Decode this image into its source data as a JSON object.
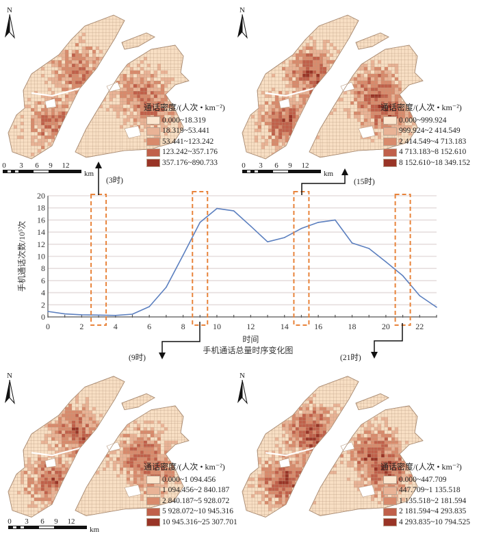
{
  "chart_data": {
    "type": "line",
    "title": "手机通话总量时序变化图",
    "xlabel": "时间",
    "ylabel": "手机通话次数/10⁵次",
    "xlim": [
      0,
      23
    ],
    "ylim": [
      0,
      20
    ],
    "grid": true,
    "x_ticks": [
      "0",
      "2",
      "4",
      "6",
      "8",
      "10",
      "12",
      "14",
      "16",
      "18",
      "20",
      "22"
    ],
    "y_ticks": [
      "0",
      "2",
      "4",
      "6",
      "8",
      "10",
      "12",
      "14",
      "16",
      "18",
      "20"
    ],
    "x": [
      0,
      1,
      2,
      3,
      4,
      5,
      6,
      7,
      8,
      9,
      10,
      11,
      12,
      13,
      14,
      15,
      16,
      17,
      18,
      19,
      20,
      21,
      22,
      23
    ],
    "series": [
      {
        "name": "手机通话次数",
        "color": "#5b7fbf",
        "values": [
          0.9,
          0.5,
          0.35,
          0.3,
          0.25,
          0.45,
          1.7,
          4.9,
          10.2,
          15.6,
          17.9,
          17.5,
          15.0,
          12.4,
          13.1,
          14.6,
          15.6,
          16.0,
          12.2,
          11.3,
          9.1,
          6.8,
          3.5,
          1.6
        ]
      }
    ],
    "highlight_hours": [
      3,
      9,
      15,
      21
    ],
    "highlight_color": "#e8833a"
  },
  "callouts": [
    {
      "hour": 3,
      "label": "(3时)"
    },
    {
      "hour": 9,
      "label": "(9时)"
    },
    {
      "hour": 15,
      "label": "(15时)"
    },
    {
      "hour": 21,
      "label": "(21时)"
    }
  ],
  "maps": [
    {
      "id": "3h",
      "north_label": "N",
      "legend_title": "通话密度/(人次 • km⁻²)",
      "legend": [
        "0.000~18.319",
        "18.319~53.441",
        "53.441~123.242",
        "123.242~357.176",
        "357.176~890.733"
      ],
      "scale_ticks": [
        "0",
        "3",
        "6",
        "9",
        "12"
      ],
      "scale_unit": "km",
      "intensity": 0.55
    },
    {
      "id": "15h",
      "north_label": "N",
      "legend_title": "通话密度/(人次 • km⁻²)",
      "legend": [
        "0.000~999.924",
        "999.924~2 414.549",
        "2 414.549~4 713.183",
        "4 713.183~8 152.610",
        "8 152.610~18 349.152"
      ],
      "scale_ticks": [
        "0",
        "3",
        "6",
        "9",
        "12"
      ],
      "scale_unit": "km",
      "intensity": 0.65
    },
    {
      "id": "9h",
      "north_label": "N",
      "legend_title": "通话密度/(人次 • km⁻²)",
      "legend": [
        "0.000~1 094.456",
        "1 094.456~2 840.187",
        "2 840.187~5 928.072",
        "5 928.072~10 945.316",
        "10 945.316~25 307.701"
      ],
      "scale_ticks": [
        "0",
        "3",
        "6",
        "9",
        "12"
      ],
      "scale_unit": "km",
      "intensity": 0.6
    },
    {
      "id": "21h",
      "north_label": "N",
      "legend_title": "通话密度/(人次 • km⁻²)",
      "legend": [
        "0.000~447.709",
        "447.709~1 135.518",
        "1 135.518~2 181.594",
        "2 181.594~4 293.835",
        "4 293.835~10 794.525"
      ],
      "scale_ticks": [
        "0",
        "3",
        "6",
        "9",
        "12"
      ],
      "scale_unit": "km",
      "intensity": 0.7
    }
  ],
  "legend_colors": [
    "#fbe6cf",
    "#e9b396",
    "#d88a6c",
    "#c0604a",
    "#993426"
  ],
  "map_base_color": "#f8dfc4",
  "map_line_color": "#b99a80"
}
